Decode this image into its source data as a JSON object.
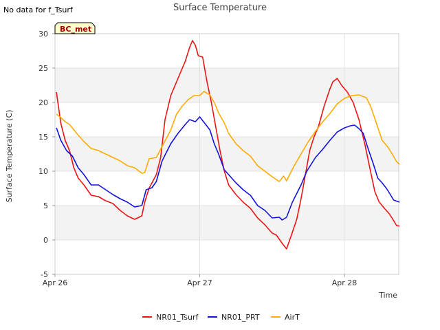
{
  "note": "No data for f_Tsurf",
  "chart_data": {
    "type": "line",
    "title": "Surface Temperature",
    "xlabel": "Time",
    "ylabel": "Surface Temperature (C)",
    "badge": "BC_met",
    "ylim": [
      -5,
      30
    ],
    "xlim": [
      0,
      2.375
    ],
    "x_ticks": [
      {
        "value": 0,
        "label": "Apr 26"
      },
      {
        "value": 1,
        "label": "Apr 27"
      },
      {
        "value": 2,
        "label": "Apr 28"
      }
    ],
    "y_ticks": [
      -5,
      0,
      5,
      10,
      15,
      20,
      25,
      30
    ],
    "grid": true,
    "legend_position": "bottom",
    "series": [
      {
        "name": "NR01_Tsurf",
        "color": "#ee1111",
        "points": [
          [
            0.01,
            21.5
          ],
          [
            0.04,
            17
          ],
          [
            0.07,
            14.5
          ],
          [
            0.1,
            13
          ],
          [
            0.13,
            10.5
          ],
          [
            0.16,
            9
          ],
          [
            0.2,
            8
          ],
          [
            0.25,
            6.5
          ],
          [
            0.3,
            6.3
          ],
          [
            0.35,
            5.7
          ],
          [
            0.4,
            5.3
          ],
          [
            0.45,
            4.3
          ],
          [
            0.5,
            3.5
          ],
          [
            0.55,
            3
          ],
          [
            0.6,
            3.5
          ],
          [
            0.62,
            5.5
          ],
          [
            0.65,
            7.5
          ],
          [
            0.7,
            9.5
          ],
          [
            0.73,
            12
          ],
          [
            0.76,
            17.5
          ],
          [
            0.8,
            21
          ],
          [
            0.85,
            23.5
          ],
          [
            0.9,
            26
          ],
          [
            0.93,
            28
          ],
          [
            0.95,
            29
          ],
          [
            0.97,
            28.3
          ],
          [
            0.99,
            26.8
          ],
          [
            1.02,
            26.6
          ],
          [
            1.05,
            23
          ],
          [
            1.08,
            20
          ],
          [
            1.11,
            16.5
          ],
          [
            1.14,
            13
          ],
          [
            1.17,
            10
          ],
          [
            1.2,
            8
          ],
          [
            1.25,
            6.6
          ],
          [
            1.3,
            5.5
          ],
          [
            1.35,
            4.6
          ],
          [
            1.4,
            3.2
          ],
          [
            1.45,
            2.2
          ],
          [
            1.5,
            1
          ],
          [
            1.53,
            0.7
          ],
          [
            1.57,
            -0.5
          ],
          [
            1.6,
            -1.3
          ],
          [
            1.63,
            0.5
          ],
          [
            1.67,
            3
          ],
          [
            1.7,
            6
          ],
          [
            1.73,
            9.5
          ],
          [
            1.76,
            13
          ],
          [
            1.79,
            15
          ],
          [
            1.82,
            16.5
          ],
          [
            1.86,
            19.5
          ],
          [
            1.9,
            22
          ],
          [
            1.92,
            23
          ],
          [
            1.95,
            23.5
          ],
          [
            1.98,
            22.5
          ],
          [
            2.02,
            21.5
          ],
          [
            2.06,
            20
          ],
          [
            2.1,
            17.5
          ],
          [
            2.14,
            14
          ],
          [
            2.18,
            10
          ],
          [
            2.21,
            7
          ],
          [
            2.24,
            5.5
          ],
          [
            2.28,
            4.5
          ],
          [
            2.31,
            3.8
          ],
          [
            2.34,
            2.8
          ],
          [
            2.36,
            2.1
          ],
          [
            2.38,
            2
          ]
        ]
      },
      {
        "name": "NR01_PRT",
        "color": "#1111dd",
        "points": [
          [
            0.01,
            16.3
          ],
          [
            0.04,
            14.5
          ],
          [
            0.08,
            13
          ],
          [
            0.12,
            12.2
          ],
          [
            0.16,
            10.5
          ],
          [
            0.2,
            9.5
          ],
          [
            0.25,
            8
          ],
          [
            0.3,
            8
          ],
          [
            0.35,
            7.3
          ],
          [
            0.4,
            6.6
          ],
          [
            0.45,
            6
          ],
          [
            0.5,
            5.5
          ],
          [
            0.55,
            4.8
          ],
          [
            0.6,
            5
          ],
          [
            0.63,
            7.3
          ],
          [
            0.67,
            7.6
          ],
          [
            0.7,
            8.5
          ],
          [
            0.74,
            11.5
          ],
          [
            0.8,
            14
          ],
          [
            0.85,
            15.5
          ],
          [
            0.9,
            16.8
          ],
          [
            0.93,
            17.5
          ],
          [
            0.97,
            17.2
          ],
          [
            1.0,
            17.9
          ],
          [
            1.03,
            17.1
          ],
          [
            1.07,
            16
          ],
          [
            1.1,
            14
          ],
          [
            1.13,
            12.5
          ],
          [
            1.17,
            10.2
          ],
          [
            1.2,
            9.5
          ],
          [
            1.25,
            8.3
          ],
          [
            1.3,
            7.3
          ],
          [
            1.35,
            6.5
          ],
          [
            1.4,
            5
          ],
          [
            1.45,
            4.3
          ],
          [
            1.5,
            3.2
          ],
          [
            1.55,
            3.3
          ],
          [
            1.57,
            2.9
          ],
          [
            1.6,
            3.3
          ],
          [
            1.64,
            5.5
          ],
          [
            1.7,
            8
          ],
          [
            1.74,
            10
          ],
          [
            1.8,
            12
          ],
          [
            1.85,
            13.2
          ],
          [
            1.9,
            14.5
          ],
          [
            1.95,
            15.7
          ],
          [
            2.0,
            16.3
          ],
          [
            2.04,
            16.6
          ],
          [
            2.07,
            16.7
          ],
          [
            2.1,
            16.2
          ],
          [
            2.13,
            15.5
          ],
          [
            2.16,
            13.5
          ],
          [
            2.2,
            11
          ],
          [
            2.23,
            9
          ],
          [
            2.26,
            8.3
          ],
          [
            2.29,
            7.5
          ],
          [
            2.32,
            6.5
          ],
          [
            2.34,
            5.8
          ],
          [
            2.38,
            5.5
          ]
        ]
      },
      {
        "name": "AirT",
        "color": "#ffaa00",
        "points": [
          [
            0.01,
            18.3
          ],
          [
            0.04,
            17.8
          ],
          [
            0.07,
            17.2
          ],
          [
            0.1,
            16.8
          ],
          [
            0.15,
            15.5
          ],
          [
            0.2,
            14.3
          ],
          [
            0.25,
            13.3
          ],
          [
            0.3,
            13
          ],
          [
            0.35,
            12.5
          ],
          [
            0.4,
            12
          ],
          [
            0.45,
            11.5
          ],
          [
            0.5,
            10.8
          ],
          [
            0.55,
            10.5
          ],
          [
            0.6,
            9.7
          ],
          [
            0.62,
            9.8
          ],
          [
            0.65,
            11.8
          ],
          [
            0.7,
            12
          ],
          [
            0.75,
            14
          ],
          [
            0.8,
            16
          ],
          [
            0.84,
            18.3
          ],
          [
            0.88,
            19.5
          ],
          [
            0.92,
            20.4
          ],
          [
            0.96,
            21
          ],
          [
            1.0,
            21
          ],
          [
            1.03,
            21.6
          ],
          [
            1.07,
            21.1
          ],
          [
            1.1,
            20
          ],
          [
            1.13,
            18.5
          ],
          [
            1.17,
            17
          ],
          [
            1.2,
            15.5
          ],
          [
            1.25,
            14
          ],
          [
            1.3,
            13
          ],
          [
            1.35,
            12.2
          ],
          [
            1.4,
            10.8
          ],
          [
            1.45,
            10
          ],
          [
            1.5,
            9.2
          ],
          [
            1.55,
            8.5
          ],
          [
            1.58,
            9.3
          ],
          [
            1.6,
            8.6
          ],
          [
            1.65,
            10.7
          ],
          [
            1.7,
            12.5
          ],
          [
            1.75,
            14.3
          ],
          [
            1.8,
            15.8
          ],
          [
            1.85,
            17.2
          ],
          [
            1.9,
            18.4
          ],
          [
            1.95,
            19.8
          ],
          [
            2.0,
            20.6
          ],
          [
            2.05,
            21
          ],
          [
            2.1,
            21.1
          ],
          [
            2.15,
            20.7
          ],
          [
            2.18,
            19.5
          ],
          [
            2.22,
            17
          ],
          [
            2.26,
            14.5
          ],
          [
            2.3,
            13.5
          ],
          [
            2.33,
            12.5
          ],
          [
            2.36,
            11.4
          ],
          [
            2.38,
            11
          ]
        ]
      }
    ]
  }
}
